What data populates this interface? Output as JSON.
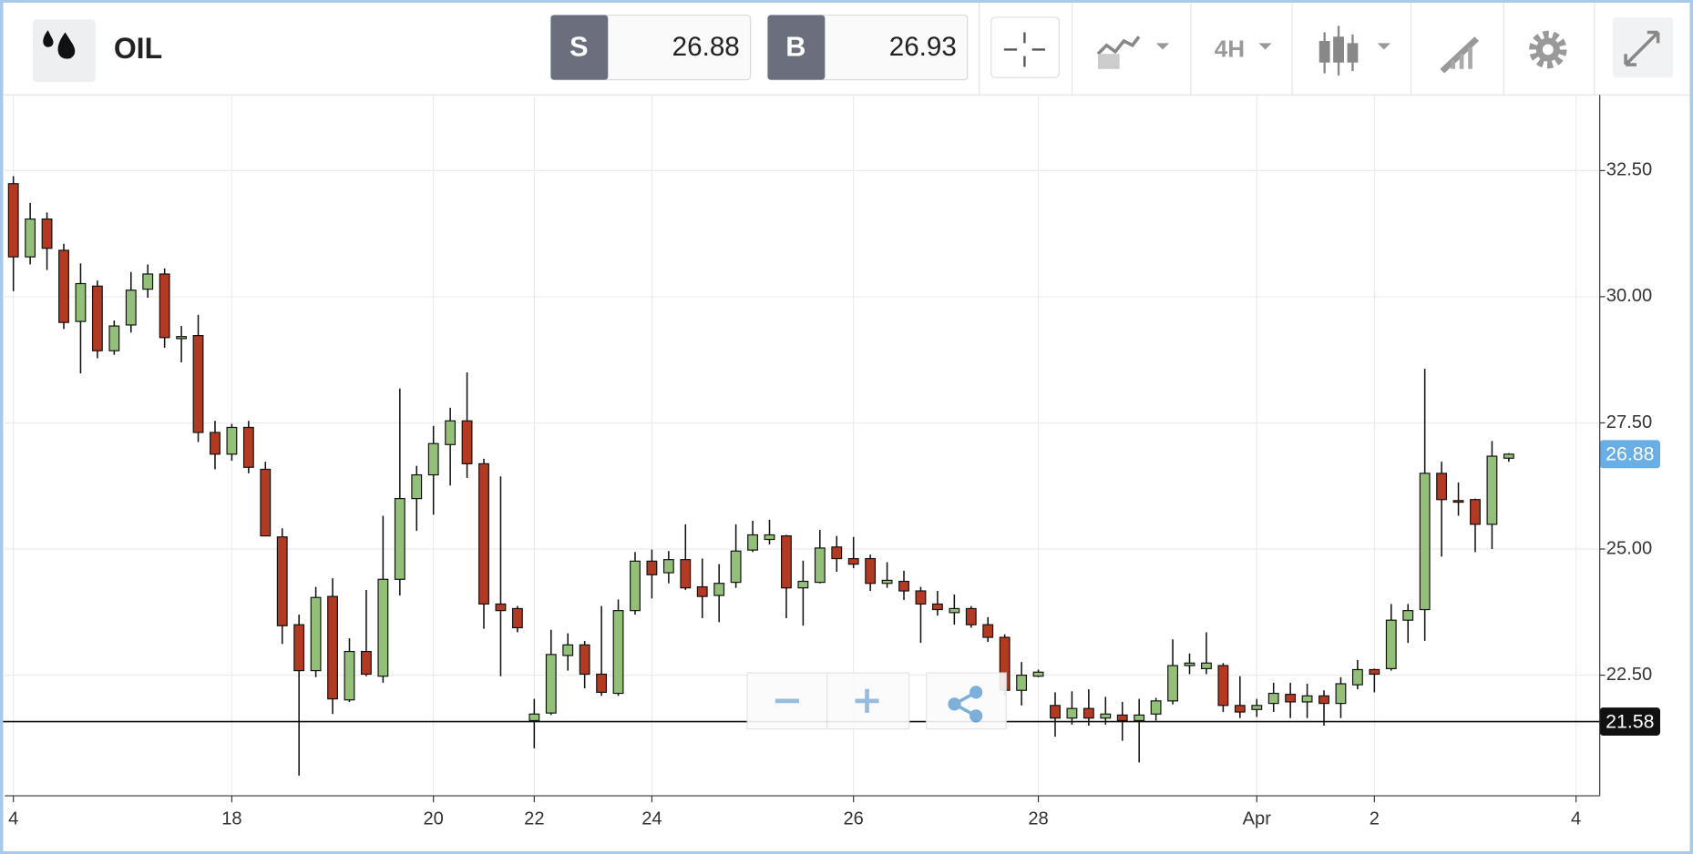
{
  "header": {
    "symbol": "OIL",
    "sell_label": "S",
    "sell_price": 26.88,
    "buy_label": "B",
    "buy_price": 26.93,
    "interval": "4H"
  },
  "chart_data": {
    "type": "candlestick",
    "categories": [
      "4",
      null,
      null,
      null,
      null,
      null,
      null,
      null,
      null,
      null,
      null,
      null,
      null,
      "18",
      null,
      null,
      null,
      null,
      null,
      null,
      null,
      null,
      null,
      null,
      null,
      "20",
      null,
      null,
      null,
      null,
      null,
      "22",
      null,
      null,
      null,
      null,
      null,
      null,
      "24",
      null,
      null,
      null,
      null,
      null,
      null,
      null,
      null,
      null,
      null,
      null,
      "26",
      null,
      null,
      null,
      null,
      null,
      null,
      null,
      null,
      null,
      null,
      "28",
      null,
      null,
      null,
      null,
      null,
      null,
      null,
      null,
      null,
      null,
      null,
      null,
      "Apr",
      null,
      null,
      null,
      null,
      null,
      null,
      "2",
      null,
      null,
      null,
      null,
      null,
      null,
      null,
      null,
      null,
      null,
      null,
      "4",
      null
    ],
    "open": [
      32.24,
      30.79,
      31.54,
      30.92,
      29.51,
      30.21,
      28.93,
      29.44,
      30.15,
      30.45,
      29.17,
      29.23,
      27.31,
      26.88,
      27.41,
      26.58,
      25.24,
      23.5,
      22.59,
      24.06,
      22.01,
      22.97,
      22.48,
      24.4,
      26.0,
      26.47,
      27.07,
      27.54,
      26.69,
      23.91,
      23.82,
      21.6,
      21.75,
      22.89,
      23.1,
      22.52,
      22.14,
      23.78,
      24.76,
      24.53,
      24.79,
      24.25,
      24.08,
      24.34,
      24.98,
      25.19,
      25.26,
      24.23,
      24.34,
      25.04,
      24.81,
      24.81,
      24.32,
      24.36,
      24.17,
      23.91,
      23.74,
      23.82,
      23.5,
      23.25,
      22.2,
      22.48,
      21.9,
      21.65,
      21.84,
      21.65,
      21.71,
      21.6,
      21.73,
      21.99,
      22.69,
      22.63,
      22.69,
      21.9,
      21.82,
      21.94,
      22.12,
      21.97,
      22.09,
      21.94,
      22.31,
      22.61,
      22.63,
      23.59,
      23.8,
      26.5,
      25.96,
      25.98,
      25.49,
      26.8,
      null,
      null,
      null,
      null,
      null
    ],
    "high": [
      32.39,
      31.86,
      31.67,
      31.05,
      30.66,
      30.32,
      29.53,
      30.49,
      30.64,
      30.56,
      29.42,
      29.64,
      27.54,
      27.48,
      27.54,
      26.73,
      25.41,
      23.7,
      24.25,
      24.42,
      23.23,
      24.19,
      25.66,
      28.18,
      26.65,
      27.44,
      27.8,
      28.5,
      26.79,
      26.44,
      23.87,
      22.03,
      23.4,
      23.33,
      23.18,
      23.87,
      24.0,
      24.94,
      24.99,
      24.96,
      25.49,
      24.81,
      24.7,
      25.49,
      25.56,
      25.58,
      25.28,
      24.77,
      25.38,
      25.26,
      25.24,
      24.89,
      24.74,
      24.57,
      24.25,
      24.17,
      24.1,
      23.87,
      23.65,
      23.31,
      22.76,
      22.61,
      22.16,
      22.18,
      22.22,
      22.07,
      21.97,
      22.03,
      22.05,
      23.21,
      22.93,
      23.35,
      22.74,
      22.48,
      22.03,
      22.35,
      22.35,
      22.33,
      22.2,
      22.46,
      22.8,
      22.63,
      23.91,
      23.91,
      28.57,
      26.73,
      26.32,
      26.0,
      27.14,
      26.9,
      null,
      null,
      null,
      null,
      null
    ],
    "low": [
      30.11,
      30.64,
      30.53,
      29.36,
      28.48,
      28.78,
      28.85,
      29.29,
      29.98,
      28.99,
      28.7,
      27.12,
      26.58,
      26.75,
      26.5,
      25.26,
      23.12,
      20.51,
      22.46,
      21.73,
      21.97,
      22.48,
      22.35,
      24.08,
      25.36,
      25.68,
      26.26,
      26.41,
      23.42,
      22.48,
      23.35,
      21.05,
      21.71,
      22.59,
      22.24,
      22.09,
      22.09,
      23.7,
      24.02,
      24.32,
      24.19,
      23.63,
      23.55,
      24.23,
      24.94,
      25.09,
      23.63,
      23.48,
      24.32,
      24.55,
      24.62,
      24.17,
      24.23,
      23.99,
      23.14,
      23.68,
      23.5,
      23.44,
      23.16,
      22.09,
      21.9,
      22.46,
      21.28,
      21.52,
      21.5,
      21.52,
      21.2,
      20.77,
      21.6,
      21.92,
      22.52,
      22.52,
      21.77,
      21.65,
      21.67,
      21.77,
      21.65,
      21.65,
      21.5,
      21.65,
      22.22,
      22.16,
      22.59,
      23.14,
      23.18,
      24.85,
      25.66,
      24.94,
      25.0,
      26.73,
      null,
      null,
      null,
      null,
      null
    ],
    "close": [
      30.79,
      31.54,
      30.96,
      29.49,
      30.26,
      28.93,
      29.42,
      30.13,
      30.45,
      29.19,
      29.21,
      27.31,
      26.88,
      27.41,
      26.62,
      25.26,
      23.48,
      22.59,
      24.04,
      22.03,
      22.97,
      22.52,
      24.4,
      26.0,
      26.47,
      27.09,
      27.54,
      26.69,
      23.91,
      23.78,
      23.44,
      21.73,
      22.91,
      23.1,
      22.52,
      22.16,
      23.78,
      24.76,
      24.49,
      24.79,
      24.23,
      24.06,
      24.32,
      24.96,
      25.28,
      25.28,
      24.23,
      24.36,
      25.02,
      24.81,
      24.7,
      24.32,
      24.38,
      24.17,
      23.91,
      23.8,
      23.82,
      23.5,
      23.25,
      22.2,
      22.5,
      22.56,
      21.65,
      21.84,
      21.65,
      21.73,
      21.6,
      21.71,
      21.99,
      22.69,
      22.74,
      22.74,
      21.9,
      21.77,
      21.9,
      22.14,
      21.97,
      22.09,
      21.94,
      22.33,
      22.61,
      22.52,
      23.59,
      23.78,
      26.5,
      25.98,
      25.94,
      25.49,
      26.84,
      26.88,
      null,
      null,
      null,
      null,
      null
    ],
    "up_color": "#93bf78",
    "down_color": "#b23a22",
    "ylim": [
      20.11,
      34.0
    ],
    "yticks": [
      {
        "value": 22.5,
        "label": "22.50"
      },
      {
        "value": 25,
        "label": "25.00"
      },
      {
        "value": 27.5,
        "label": "27.50"
      },
      {
        "value": 30,
        "label": "30.00"
      },
      {
        "value": 32.5,
        "label": "32.50"
      }
    ],
    "grid": true,
    "price_line": 21.58,
    "last_price": 26.88
  }
}
